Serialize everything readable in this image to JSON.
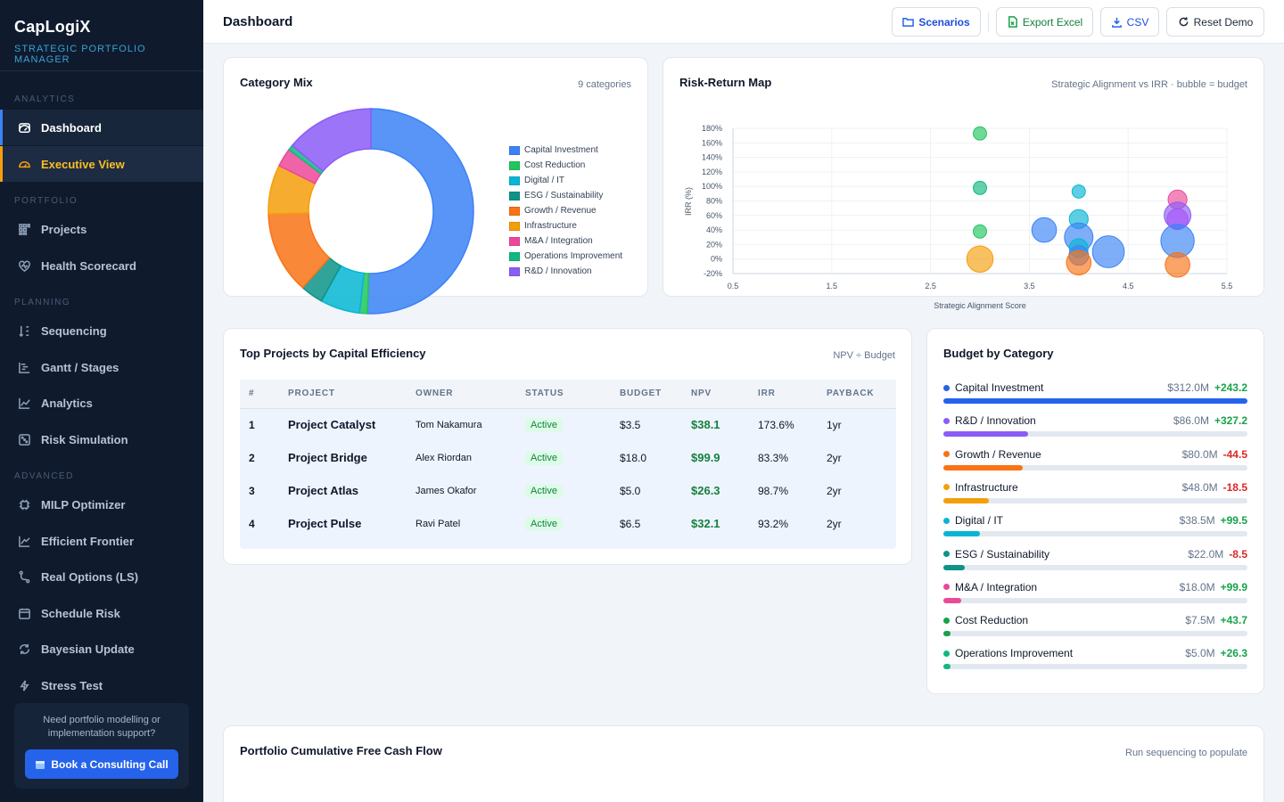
{
  "app": {
    "name": "CapLogiX",
    "tagline": "STRATEGIC PORTFOLIO MANAGER"
  },
  "sidebar": {
    "sections": {
      "analytics": "ANALYTICS",
      "portfolio": "PORTFOLIO",
      "planning": "PLANNING",
      "advanced": "ADVANCED"
    },
    "items": [
      {
        "label": "Dashboard",
        "icon": "gauge-icon"
      },
      {
        "label": "Executive View",
        "icon": "speedometer-icon"
      },
      {
        "label": "Projects",
        "icon": "grid-icon"
      },
      {
        "label": "Health Scorecard",
        "icon": "heart-pulse-icon"
      },
      {
        "label": "Sequencing",
        "icon": "sort-icon"
      },
      {
        "label": "Gantt / Stages",
        "icon": "gantt-icon"
      },
      {
        "label": "Analytics",
        "icon": "line-chart-icon"
      },
      {
        "label": "Risk Simulation",
        "icon": "dice-icon"
      },
      {
        "label": "MILP Optimizer",
        "icon": "cpu-icon"
      },
      {
        "label": "Efficient Frontier",
        "icon": "trend-icon"
      },
      {
        "label": "Real Options (LS)",
        "icon": "branch-icon"
      },
      {
        "label": "Schedule Risk",
        "icon": "calendar-icon"
      },
      {
        "label": "Bayesian Update",
        "icon": "refresh-icon"
      },
      {
        "label": "Stress Test",
        "icon": "bolt-icon"
      }
    ],
    "cta": {
      "text": "Need portfolio modelling or implementation support?",
      "button": "Book a Consulting Call"
    }
  },
  "header": {
    "title": "Dashboard",
    "buttons": {
      "scenarios": "Scenarios",
      "export_excel": "Export Excel",
      "csv": "CSV",
      "reset": "Reset Demo"
    }
  },
  "category_mix": {
    "title": "Category Mix",
    "meta": "9 categories",
    "chart_data": {
      "type": "pie",
      "categories": [
        "Capital Investment",
        "Cost Reduction",
        "Digital / IT",
        "ESG / Sustainability",
        "Growth / Revenue",
        "Infrastructure",
        "M&A / Integration",
        "Operations Improvement",
        "R&D / Innovation"
      ],
      "values": [
        312,
        7.5,
        38.5,
        22,
        80,
        48,
        18,
        5,
        86
      ],
      "colors": [
        "#3b82f6",
        "#22c55e",
        "#06b6d4",
        "#0d9488",
        "#f97316",
        "#f59e0b",
        "#ec4899",
        "#10b981",
        "#8b5cf6"
      ]
    }
  },
  "risk_return": {
    "title": "Risk-Return Map",
    "meta": "Strategic Alignment vs IRR · bubble = budget",
    "chart_data": {
      "type": "scatter",
      "xlabel": "Strategic Alignment Score",
      "ylabel": "IRR (%)",
      "xlim": [
        0.5,
        5.5
      ],
      "ylim": [
        -20,
        180
      ],
      "xticks": [
        "0.5",
        "1.5",
        "2.5",
        "3.5",
        "4.5",
        "5.5"
      ],
      "yticks": [
        "-20%",
        "0%",
        "20%",
        "40%",
        "60%",
        "80%",
        "100%",
        "120%",
        "140%",
        "160%",
        "180%"
      ],
      "points": [
        {
          "x": 3,
          "y": 173,
          "size": 5,
          "color": "#22c55e"
        },
        {
          "x": 3,
          "y": 98,
          "size": 5,
          "color": "#10b981"
        },
        {
          "x": 3,
          "y": 38,
          "size": 5,
          "color": "#22c55e"
        },
        {
          "x": 3,
          "y": 0,
          "size": 48,
          "color": "#f59e0b"
        },
        {
          "x": 4,
          "y": 93,
          "size": 5,
          "color": "#06b6d4"
        },
        {
          "x": 4,
          "y": 55,
          "size": 18,
          "color": "#06b6d4"
        },
        {
          "x": 3.65,
          "y": 40,
          "size": 40,
          "color": "#3b82f6"
        },
        {
          "x": 4,
          "y": 30,
          "size": 60,
          "color": "#3b82f6"
        },
        {
          "x": 4,
          "y": 15,
          "size": 18,
          "color": "#06b6d4"
        },
        {
          "x": 4,
          "y": 5,
          "size": 20,
          "color": "#3b82f6"
        },
        {
          "x": 4,
          "y": -5,
          "size": 40,
          "color": "#f97316"
        },
        {
          "x": 4.3,
          "y": 10,
          "size": 80,
          "color": "#3b82f6"
        },
        {
          "x": 5,
          "y": 82,
          "size": 18,
          "color": "#ec4899"
        },
        {
          "x": 5,
          "y": 60,
          "size": 50,
          "color": "#8b5cf6"
        },
        {
          "x": 5,
          "y": 55,
          "size": 25,
          "color": "#a855f7"
        },
        {
          "x": 5,
          "y": 25,
          "size": 90,
          "color": "#3b82f6"
        },
        {
          "x": 5,
          "y": -8,
          "size": 40,
          "color": "#f97316"
        }
      ]
    }
  },
  "top_projects": {
    "title": "Top Projects by Capital Efficiency",
    "meta": "NPV ÷ Budget",
    "columns": [
      "#",
      "PROJECT",
      "OWNER",
      "STATUS",
      "BUDGET",
      "NPV",
      "IRR",
      "PAYBACK"
    ],
    "rows": [
      {
        "rank": "1",
        "project": "Project Catalyst",
        "owner": "Tom Nakamura",
        "status": "Active",
        "budget": "$3.5",
        "npv": "$38.1",
        "irr": "173.6%",
        "payback": "1yr"
      },
      {
        "rank": "2",
        "project": "Project Bridge",
        "owner": "Alex Riordan",
        "status": "Active",
        "budget": "$18.0",
        "npv": "$99.9",
        "irr": "83.3%",
        "payback": "2yr"
      },
      {
        "rank": "3",
        "project": "Project Atlas",
        "owner": "James Okafor",
        "status": "Active",
        "budget": "$5.0",
        "npv": "$26.3",
        "irr": "98.7%",
        "payback": "2yr"
      },
      {
        "rank": "4",
        "project": "Project Pulse",
        "owner": "Ravi Patel",
        "status": "Active",
        "budget": "$6.5",
        "npv": "$32.1",
        "irr": "93.2%",
        "payback": "2yr"
      }
    ]
  },
  "budget_by_category": {
    "title": "Budget by Category",
    "items": [
      {
        "name": "Capital Investment",
        "amount": "$312.0M",
        "delta": "+243.2",
        "positive": true,
        "fraction": 1.0,
        "color": "#2563eb"
      },
      {
        "name": "R&D / Innovation",
        "amount": "$86.0M",
        "delta": "+327.2",
        "positive": true,
        "fraction": 0.28,
        "color": "#8b5cf6"
      },
      {
        "name": "Growth / Revenue",
        "amount": "$80.0M",
        "delta": "-44.5",
        "positive": false,
        "fraction": 0.26,
        "color": "#f97316"
      },
      {
        "name": "Infrastructure",
        "amount": "$48.0M",
        "delta": "-18.5",
        "positive": false,
        "fraction": 0.15,
        "color": "#f59e0b"
      },
      {
        "name": "Digital / IT",
        "amount": "$38.5M",
        "delta": "+99.5",
        "positive": true,
        "fraction": 0.12,
        "color": "#06b6d4"
      },
      {
        "name": "ESG / Sustainability",
        "amount": "$22.0M",
        "delta": "-8.5",
        "positive": false,
        "fraction": 0.07,
        "color": "#0d9488"
      },
      {
        "name": "M&A / Integration",
        "amount": "$18.0M",
        "delta": "+99.9",
        "positive": true,
        "fraction": 0.06,
        "color": "#ec4899"
      },
      {
        "name": "Cost Reduction",
        "amount": "$7.5M",
        "delta": "+43.7",
        "positive": true,
        "fraction": 0.024,
        "color": "#16a34a"
      },
      {
        "name": "Operations Improvement",
        "amount": "$5.0M",
        "delta": "+26.3",
        "positive": true,
        "fraction": 0.016,
        "color": "#10b981"
      }
    ]
  },
  "cash_flow": {
    "title": "Portfolio Cumulative Free Cash Flow",
    "meta": "Run sequencing to populate"
  }
}
